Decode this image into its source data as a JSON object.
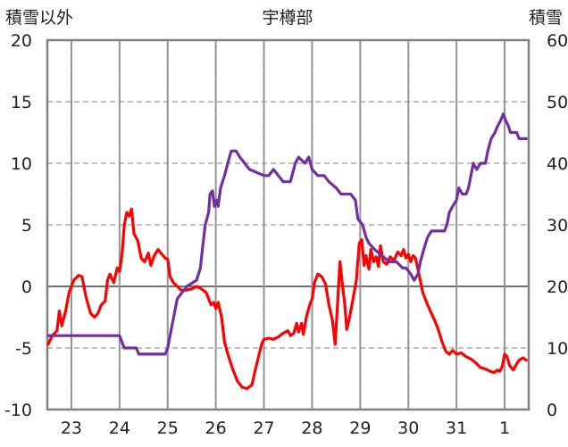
{
  "chart_data": {
    "type": "line",
    "title": "宇樽部",
    "ylabel_left": "積雪以外",
    "ylabel_right": "積雪",
    "ylim_left": [
      -10,
      20
    ],
    "ylim_right": [
      0,
      60
    ],
    "yticks_left": [
      "20",
      "15",
      "10",
      "5",
      "0",
      "-5",
      "-10"
    ],
    "yticks_right": [
      "60",
      "50",
      "40",
      "30",
      "20",
      "10",
      "0"
    ],
    "x_tick_labels": [
      "23",
      "24",
      "25",
      "26",
      "27",
      "28",
      "29",
      "30",
      "31",
      "1"
    ],
    "x_range_days": [
      22.5,
      32.5
    ],
    "grid": true,
    "series": [
      {
        "axis": "left",
        "color": "#ff0000",
        "points": [
          [
            22.52,
            -4.7
          ],
          [
            22.6,
            -4.0
          ],
          [
            22.7,
            -3.6
          ],
          [
            22.75,
            -2.0
          ],
          [
            22.8,
            -3.2
          ],
          [
            22.88,
            -2.0
          ],
          [
            22.95,
            -0.5
          ],
          [
            23.05,
            0.5
          ],
          [
            23.15,
            0.9
          ],
          [
            23.22,
            0.8
          ],
          [
            23.3,
            -0.8
          ],
          [
            23.4,
            -2.2
          ],
          [
            23.48,
            -2.5
          ],
          [
            23.55,
            -2.2
          ],
          [
            23.62,
            -1.5
          ],
          [
            23.7,
            -1.2
          ],
          [
            23.75,
            0.5
          ],
          [
            23.8,
            1.0
          ],
          [
            23.88,
            0.3
          ],
          [
            23.95,
            1.5
          ],
          [
            24.0,
            1.2
          ],
          [
            24.05,
            2.5
          ],
          [
            24.1,
            5.0
          ],
          [
            24.15,
            6.0
          ],
          [
            24.2,
            5.7
          ],
          [
            24.25,
            6.3
          ],
          [
            24.3,
            4.3
          ],
          [
            24.38,
            3.7
          ],
          [
            24.45,
            2.3
          ],
          [
            24.52,
            2.0
          ],
          [
            24.6,
            2.7
          ],
          [
            24.65,
            1.7
          ],
          [
            24.72,
            2.5
          ],
          [
            24.8,
            3.0
          ],
          [
            24.88,
            2.6
          ],
          [
            24.95,
            2.3
          ],
          [
            25.0,
            2.2
          ],
          [
            25.05,
            0.8
          ],
          [
            25.12,
            0.3
          ],
          [
            25.2,
            0.0
          ],
          [
            25.28,
            -0.3
          ],
          [
            25.4,
            -0.3
          ],
          [
            25.5,
            -0.2
          ],
          [
            25.6,
            0.0
          ],
          [
            25.7,
            -0.2
          ],
          [
            25.8,
            -0.5
          ],
          [
            25.9,
            -1.5
          ],
          [
            25.96,
            -1.3
          ],
          [
            26.0,
            -1.8
          ],
          [
            26.05,
            -1.3
          ],
          [
            26.12,
            -2.5
          ],
          [
            26.18,
            -4.5
          ],
          [
            26.25,
            -5.5
          ],
          [
            26.35,
            -6.7
          ],
          [
            26.45,
            -7.7
          ],
          [
            26.55,
            -8.2
          ],
          [
            26.65,
            -8.3
          ],
          [
            26.75,
            -8.0
          ],
          [
            26.82,
            -6.8
          ],
          [
            26.9,
            -5.5
          ],
          [
            26.95,
            -4.7
          ],
          [
            27.0,
            -4.3
          ],
          [
            27.1,
            -4.2
          ],
          [
            27.2,
            -4.3
          ],
          [
            27.3,
            -4.1
          ],
          [
            27.4,
            -3.8
          ],
          [
            27.5,
            -3.6
          ],
          [
            27.55,
            -4.0
          ],
          [
            27.62,
            -3.8
          ],
          [
            27.68,
            -3.0
          ],
          [
            27.72,
            -3.7
          ],
          [
            27.78,
            -3.0
          ],
          [
            27.82,
            -3.9
          ],
          [
            27.88,
            -2.5
          ],
          [
            27.95,
            -1.5
          ],
          [
            28.0,
            -1.0
          ],
          [
            28.05,
            0.3
          ],
          [
            28.12,
            1.0
          ],
          [
            28.2,
            0.8
          ],
          [
            28.28,
            0.2
          ],
          [
            28.35,
            -1.5
          ],
          [
            28.42,
            -2.7
          ],
          [
            28.48,
            -4.7
          ],
          [
            28.52,
            -2.0
          ],
          [
            28.58,
            2.0
          ],
          [
            28.62,
            0.5
          ],
          [
            28.68,
            -1.5
          ],
          [
            28.72,
            -3.5
          ],
          [
            28.78,
            -2.5
          ],
          [
            28.85,
            -1.0
          ],
          [
            28.92,
            0.5
          ],
          [
            28.98,
            3.5
          ],
          [
            29.03,
            3.8
          ],
          [
            29.08,
            1.7
          ],
          [
            29.12,
            2.5
          ],
          [
            29.18,
            1.4
          ],
          [
            29.22,
            3.0
          ],
          [
            29.28,
            2.0
          ],
          [
            29.33,
            2.4
          ],
          [
            29.38,
            1.6
          ],
          [
            29.42,
            3.3
          ],
          [
            29.48,
            2.0
          ],
          [
            29.55,
            1.8
          ],
          [
            29.62,
            2.4
          ],
          [
            29.7,
            2.1
          ],
          [
            29.78,
            2.8
          ],
          [
            29.85,
            2.5
          ],
          [
            29.9,
            3.0
          ],
          [
            29.95,
            2.3
          ],
          [
            30.0,
            2.6
          ],
          [
            30.05,
            2.0
          ],
          [
            30.1,
            2.5
          ],
          [
            30.15,
            2.3
          ],
          [
            30.22,
            1.0
          ],
          [
            30.3,
            -0.5
          ],
          [
            30.4,
            -1.5
          ],
          [
            30.48,
            -2.2
          ],
          [
            30.55,
            -2.8
          ],
          [
            30.62,
            -3.5
          ],
          [
            30.7,
            -4.5
          ],
          [
            30.78,
            -5.3
          ],
          [
            30.85,
            -5.5
          ],
          [
            30.92,
            -5.2
          ],
          [
            31.0,
            -5.5
          ],
          [
            31.1,
            -5.4
          ],
          [
            31.2,
            -5.7
          ],
          [
            31.3,
            -5.9
          ],
          [
            31.4,
            -6.2
          ],
          [
            31.5,
            -6.6
          ],
          [
            31.6,
            -6.7
          ],
          [
            31.7,
            -6.9
          ],
          [
            31.78,
            -7.0
          ],
          [
            31.85,
            -6.8
          ],
          [
            31.9,
            -6.9
          ],
          [
            31.95,
            -6.5
          ],
          [
            32.0,
            -5.5
          ],
          [
            32.05,
            -5.7
          ],
          [
            32.1,
            -6.4
          ],
          [
            32.18,
            -6.8
          ],
          [
            32.25,
            -6.3
          ],
          [
            32.3,
            -6.0
          ],
          [
            32.38,
            -5.8
          ],
          [
            32.45,
            -6.0
          ]
        ]
      },
      {
        "axis": "right",
        "color": "#7030a0",
        "points": [
          [
            22.52,
            12.0
          ],
          [
            23.0,
            12.0
          ],
          [
            23.5,
            12.0
          ],
          [
            24.0,
            12.0
          ],
          [
            24.05,
            11.0
          ],
          [
            24.1,
            10.0
          ],
          [
            24.35,
            10.0
          ],
          [
            24.4,
            9.0
          ],
          [
            24.95,
            9.0
          ],
          [
            25.0,
            10.0
          ],
          [
            25.05,
            12.0
          ],
          [
            25.1,
            14.0
          ],
          [
            25.15,
            16.0
          ],
          [
            25.2,
            18.0
          ],
          [
            25.3,
            19.0
          ],
          [
            25.4,
            20.0
          ],
          [
            25.5,
            20.5
          ],
          [
            25.6,
            21.0
          ],
          [
            25.68,
            23.0
          ],
          [
            25.72,
            26.0
          ],
          [
            25.78,
            30.0
          ],
          [
            25.85,
            32.0
          ],
          [
            25.88,
            35.0
          ],
          [
            25.93,
            35.5
          ],
          [
            25.97,
            33.0
          ],
          [
            26.02,
            34.0
          ],
          [
            26.05,
            33.0
          ],
          [
            26.1,
            36.0
          ],
          [
            26.18,
            38.0
          ],
          [
            26.25,
            40.0
          ],
          [
            26.32,
            42.0
          ],
          [
            26.42,
            42.0
          ],
          [
            26.5,
            41.0
          ],
          [
            26.6,
            40.0
          ],
          [
            26.7,
            39.0
          ],
          [
            27.0,
            38.0
          ],
          [
            27.1,
            38.0
          ],
          [
            27.2,
            39.0
          ],
          [
            27.3,
            38.0
          ],
          [
            27.4,
            37.0
          ],
          [
            27.55,
            37.0
          ],
          [
            27.65,
            40.0
          ],
          [
            27.72,
            41.0
          ],
          [
            27.85,
            40.0
          ],
          [
            27.93,
            41.0
          ],
          [
            28.0,
            39.0
          ],
          [
            28.12,
            38.0
          ],
          [
            28.25,
            38.0
          ],
          [
            28.35,
            37.0
          ],
          [
            28.5,
            36.0
          ],
          [
            28.6,
            35.0
          ],
          [
            28.8,
            35.0
          ],
          [
            28.9,
            34.0
          ],
          [
            28.95,
            31.0
          ],
          [
            29.05,
            30.0
          ],
          [
            29.12,
            28.0
          ],
          [
            29.18,
            27.0
          ],
          [
            29.3,
            26.0
          ],
          [
            29.45,
            25.0
          ],
          [
            29.6,
            24.0
          ],
          [
            29.75,
            24.0
          ],
          [
            29.88,
            23.0
          ],
          [
            29.95,
            23.0
          ],
          [
            30.05,
            22.0
          ],
          [
            30.12,
            21.0
          ],
          [
            30.2,
            22.0
          ],
          [
            30.25,
            24.0
          ],
          [
            30.32,
            26.0
          ],
          [
            30.4,
            28.0
          ],
          [
            30.48,
            29.0
          ],
          [
            30.75,
            29.0
          ],
          [
            30.8,
            30.0
          ],
          [
            30.85,
            32.0
          ],
          [
            30.92,
            33.0
          ],
          [
            31.0,
            34.0
          ],
          [
            31.05,
            36.0
          ],
          [
            31.12,
            35.0
          ],
          [
            31.2,
            35.0
          ],
          [
            31.25,
            36.0
          ],
          [
            31.3,
            38.0
          ],
          [
            31.35,
            40.0
          ],
          [
            31.42,
            39.0
          ],
          [
            31.5,
            40.0
          ],
          [
            31.6,
            40.0
          ],
          [
            31.65,
            42.0
          ],
          [
            31.72,
            44.0
          ],
          [
            31.8,
            45.0
          ],
          [
            31.85,
            46.0
          ],
          [
            31.92,
            47.0
          ],
          [
            31.97,
            48.0
          ],
          [
            32.02,
            47.0
          ],
          [
            32.08,
            46.0
          ],
          [
            32.12,
            45.0
          ],
          [
            32.25,
            45.0
          ],
          [
            32.3,
            44.0
          ],
          [
            32.45,
            44.0
          ]
        ]
      }
    ]
  }
}
